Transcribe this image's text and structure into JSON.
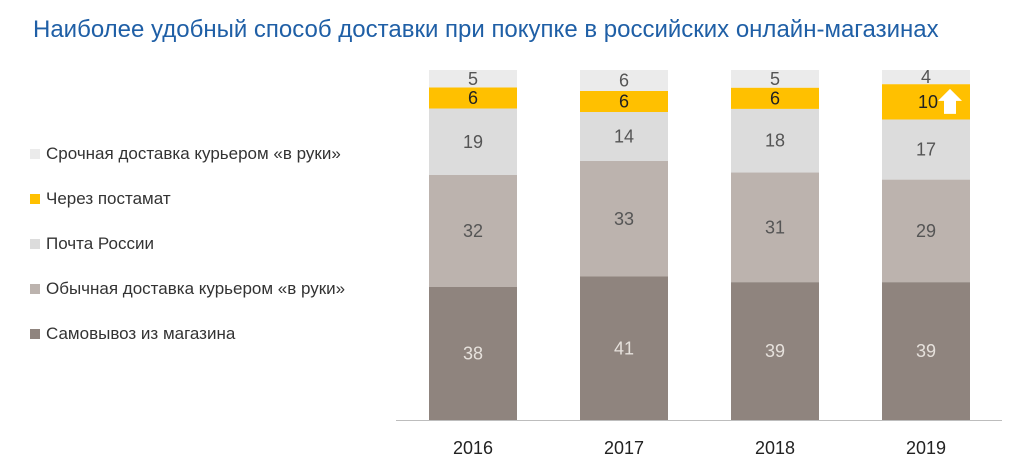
{
  "chart_data": {
    "type": "bar",
    "stacked": true,
    "title": "Наиболее удобный способ доставки при покупке в российских онлайн-магазинах",
    "categories": [
      "2016",
      "2017",
      "2018",
      "2019"
    ],
    "series": [
      {
        "name": "Самовывоз из магазина",
        "values": [
          38,
          41,
          39,
          39
        ],
        "color": "#8f847e",
        "label_color": "#e6e1dc"
      },
      {
        "name": "Обычная доставка курьером «в руки»",
        "values": [
          32,
          33,
          31,
          29
        ],
        "color": "#bcb3ae",
        "label_color": "#555555"
      },
      {
        "name": "Почта России",
        "values": [
          19,
          14,
          18,
          17
        ],
        "color": "#dcdcdc",
        "label_color": "#555555"
      },
      {
        "name": "Через постамат",
        "values": [
          6,
          6,
          6,
          10
        ],
        "color": "#ffc000",
        "label_color": "#222222"
      },
      {
        "name": "Срочная доставка курьером «в руки»",
        "values": [
          5,
          6,
          5,
          4
        ],
        "color": "#ebebeb",
        "label_color": "#555555"
      }
    ],
    "legend_position": "left",
    "grid": false,
    "ylim": [
      0,
      100
    ],
    "annotations": [
      {
        "category": "2019",
        "series": "Через постамат",
        "marker": "up-arrow-icon",
        "color": "#ffffff"
      }
    ]
  }
}
